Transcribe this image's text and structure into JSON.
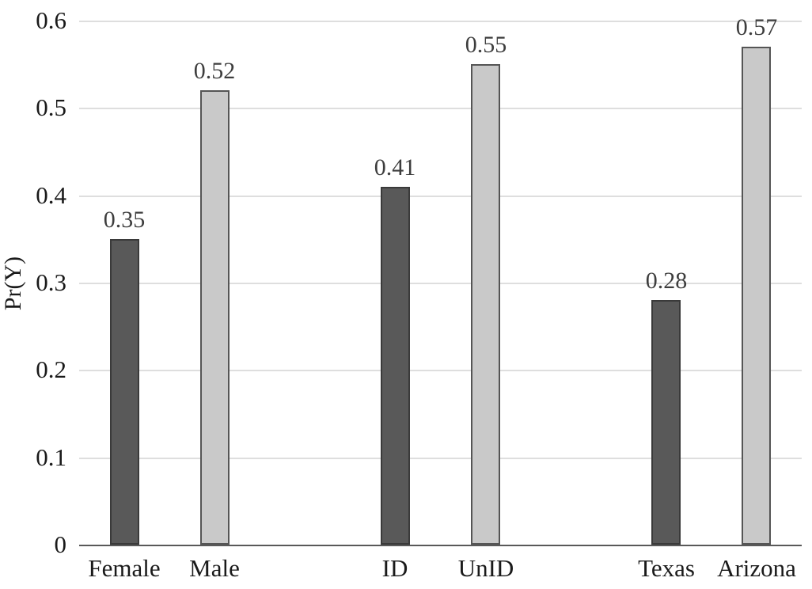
{
  "chart_data": {
    "type": "bar",
    "title": "",
    "xlabel": "",
    "ylabel": "Pr(Y)",
    "ylim": [
      0,
      0.6
    ],
    "grid": true,
    "legend": "none",
    "num_slots": 8,
    "bars": [
      {
        "label": "Female",
        "value": 0.35,
        "value_label": "0.35",
        "slot": 0,
        "style": "dark"
      },
      {
        "label": "Male",
        "value": 0.52,
        "value_label": "0.52",
        "slot": 1,
        "style": "light"
      },
      {
        "label": "ID",
        "value": 0.41,
        "value_label": "0.41",
        "slot": 3,
        "style": "dark"
      },
      {
        "label": "UnID",
        "value": 0.55,
        "value_label": "0.55",
        "slot": 4,
        "style": "light"
      },
      {
        "label": "Texas",
        "value": 0.28,
        "value_label": "0.28",
        "slot": 6,
        "style": "dark"
      },
      {
        "label": "Arizona",
        "value": 0.57,
        "value_label": "0.57",
        "slot": 7,
        "style": "light"
      }
    ],
    "y_ticks": [
      {
        "value": 0,
        "label": "0"
      },
      {
        "value": 0.1,
        "label": "0.1"
      },
      {
        "value": 0.2,
        "label": "0.2"
      },
      {
        "value": 0.3,
        "label": "0.3"
      },
      {
        "value": 0.4,
        "label": "0.4"
      },
      {
        "value": 0.5,
        "label": "0.5"
      },
      {
        "value": 0.6,
        "label": "0.6"
      }
    ],
    "colors": {
      "dark_fill": "#595959",
      "dark_border": "#3a3a3a",
      "light_fill": "#c9c9c9",
      "light_border": "#555555",
      "gridline": "#dedede",
      "axis_line": "#595959",
      "tick_text": "#1a1a1a",
      "value_text": "#3d3d3d",
      "background": "#ffffff"
    }
  }
}
